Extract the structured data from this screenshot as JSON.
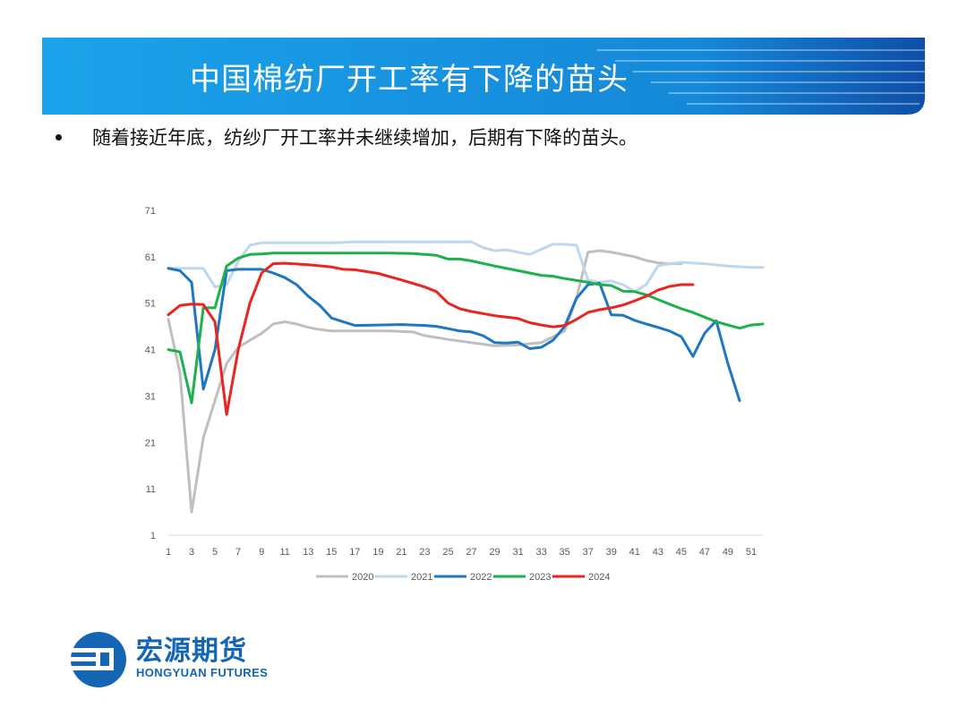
{
  "header": {
    "title": "中国棉纺厂开工率有下降的苗头",
    "banner_color": "#1296e3"
  },
  "bullet": {
    "text": "随着接近年底，纺纱厂开工率并未继续增加，后期有下降的苗头。"
  },
  "logo": {
    "name_cn": "宏源期货",
    "name_en": "HONGYUAN FUTURES",
    "color": "#1466b5"
  },
  "chart_data": {
    "type": "line",
    "title": "",
    "xlabel": "",
    "ylabel": "",
    "ylim": [
      1,
      71
    ],
    "yticks": [
      1,
      11,
      21,
      31,
      41,
      51,
      61,
      71
    ],
    "xlim": [
      1,
      52
    ],
    "xticks": [
      1,
      3,
      5,
      7,
      9,
      11,
      13,
      15,
      17,
      19,
      21,
      23,
      25,
      27,
      29,
      31,
      33,
      35,
      37,
      39,
      41,
      43,
      45,
      47,
      49,
      51
    ],
    "grid": false,
    "legend_position": "bottom",
    "series": [
      {
        "name": "2020",
        "color": "#bfbfbf",
        "points": [
          [
            1,
            47.5
          ],
          [
            2,
            36
          ],
          [
            3,
            6
          ],
          [
            4,
            22
          ],
          [
            5,
            30
          ],
          [
            6,
            38
          ],
          [
            7,
            41.5
          ],
          [
            8,
            43
          ],
          [
            9,
            44.5
          ],
          [
            10,
            46.5
          ],
          [
            11,
            47
          ],
          [
            12,
            46.5
          ],
          [
            13,
            45.8
          ],
          [
            14,
            45.3
          ],
          [
            15,
            45
          ],
          [
            17,
            45
          ],
          [
            20,
            45
          ],
          [
            22,
            44.8
          ],
          [
            23,
            44
          ],
          [
            25,
            43.2
          ],
          [
            27,
            42.5
          ],
          [
            29,
            41.8
          ],
          [
            31,
            42
          ],
          [
            33,
            42.5
          ],
          [
            35,
            45
          ],
          [
            36,
            52
          ],
          [
            37,
            62
          ],
          [
            38,
            62.3
          ],
          [
            39,
            62
          ],
          [
            40,
            61.5
          ],
          [
            41,
            61
          ],
          [
            42,
            60.2
          ],
          [
            43,
            59.7
          ],
          [
            44,
            59.5
          ],
          [
            45,
            59.5
          ]
        ]
      },
      {
        "name": "2021",
        "color": "#bdd7ee",
        "points": [
          [
            1,
            58.5
          ],
          [
            4,
            58.5
          ],
          [
            5,
            54.5
          ],
          [
            6,
            55
          ],
          [
            7,
            60
          ],
          [
            8,
            63.5
          ],
          [
            9,
            64
          ],
          [
            15,
            64
          ],
          [
            17,
            64.2
          ],
          [
            27,
            64.2
          ],
          [
            28,
            63
          ],
          [
            29,
            62.3
          ],
          [
            30,
            62.5
          ],
          [
            32,
            61.5
          ],
          [
            34,
            63.7
          ],
          [
            35,
            63.7
          ],
          [
            36,
            63.5
          ],
          [
            37,
            56
          ],
          [
            38,
            55.5
          ],
          [
            39,
            55.8
          ],
          [
            40,
            55
          ],
          [
            41,
            53.5
          ],
          [
            42,
            55
          ],
          [
            43,
            59
          ],
          [
            44,
            59.5
          ],
          [
            45,
            59.8
          ],
          [
            47,
            59.5
          ],
          [
            49,
            59
          ],
          [
            51,
            58.7
          ],
          [
            52,
            58.7
          ]
        ]
      },
      {
        "name": "2022",
        "color": "#1f77c2",
        "points": [
          [
            1,
            58.5
          ],
          [
            2,
            58
          ],
          [
            3,
            55.5
          ],
          [
            4,
            32.5
          ],
          [
            5,
            41
          ],
          [
            6,
            58
          ],
          [
            7,
            58.3
          ],
          [
            9,
            58.3
          ],
          [
            10,
            57.5
          ],
          [
            11,
            56.5
          ],
          [
            12,
            55
          ],
          [
            13,
            52.5
          ],
          [
            14,
            50.5
          ],
          [
            15,
            47.8
          ],
          [
            16,
            47
          ],
          [
            17,
            46.2
          ],
          [
            19,
            46.3
          ],
          [
            21,
            46.4
          ],
          [
            23,
            46.2
          ],
          [
            24,
            46
          ],
          [
            25,
            45.5
          ],
          [
            26,
            45
          ],
          [
            27,
            44.8
          ],
          [
            28,
            44
          ],
          [
            29,
            42.5
          ],
          [
            30,
            42.4
          ],
          [
            31,
            42.6
          ],
          [
            32,
            41.2
          ],
          [
            33,
            41.5
          ],
          [
            34,
            43
          ],
          [
            35,
            46
          ],
          [
            36,
            52
          ],
          [
            37,
            55
          ],
          [
            38,
            55.3
          ],
          [
            39,
            48.5
          ],
          [
            40,
            48.4
          ],
          [
            41,
            47.3
          ],
          [
            42,
            46.5
          ],
          [
            43,
            45.8
          ],
          [
            44,
            45
          ],
          [
            45,
            43.8
          ],
          [
            46,
            39.5
          ],
          [
            47,
            44.5
          ],
          [
            48,
            47.2
          ],
          [
            49,
            38
          ],
          [
            50,
            30
          ]
        ]
      },
      {
        "name": "2023",
        "color": "#1db04b",
        "points": [
          [
            1,
            41
          ],
          [
            2,
            40.5
          ],
          [
            3,
            29.5
          ],
          [
            4,
            50
          ],
          [
            5,
            50
          ],
          [
            6,
            59
          ],
          [
            7,
            60.7
          ],
          [
            8,
            61.5
          ],
          [
            9,
            61.6
          ],
          [
            10,
            61.8
          ],
          [
            20,
            61.8
          ],
          [
            22,
            61.7
          ],
          [
            24,
            61.3
          ],
          [
            25,
            60.5
          ],
          [
            26,
            60.5
          ],
          [
            27,
            60.1
          ],
          [
            29,
            59
          ],
          [
            31,
            58
          ],
          [
            33,
            57
          ],
          [
            34,
            56.8
          ],
          [
            35,
            56.3
          ],
          [
            37,
            55.5
          ],
          [
            38,
            55
          ],
          [
            39,
            54.8
          ],
          [
            40,
            53.6
          ],
          [
            41,
            53.5
          ],
          [
            42,
            52.8
          ],
          [
            43,
            51.8
          ],
          [
            44,
            50.8
          ],
          [
            45,
            49.8
          ],
          [
            46,
            49
          ],
          [
            47,
            48
          ],
          [
            48,
            47
          ],
          [
            49,
            46.3
          ],
          [
            50,
            45.6
          ],
          [
            51,
            46.3
          ],
          [
            52,
            46.5
          ]
        ]
      },
      {
        "name": "2024",
        "color": "#e8251f",
        "points": [
          [
            1,
            48.5
          ],
          [
            2,
            50.5
          ],
          [
            3,
            50.8
          ],
          [
            4,
            50.7
          ],
          [
            5,
            47
          ],
          [
            6,
            27
          ],
          [
            7,
            41
          ],
          [
            8,
            51
          ],
          [
            9,
            57.5
          ],
          [
            10,
            59.5
          ],
          [
            11,
            59.6
          ],
          [
            13,
            59.3
          ],
          [
            15,
            58.8
          ],
          [
            16,
            58.3
          ],
          [
            17,
            58.2
          ],
          [
            19,
            57.4
          ],
          [
            21,
            56
          ],
          [
            23,
            54.5
          ],
          [
            24,
            53.5
          ],
          [
            25,
            51
          ],
          [
            26,
            49.8
          ],
          [
            27,
            49.2
          ],
          [
            29,
            48.3
          ],
          [
            31,
            47.7
          ],
          [
            32,
            46.8
          ],
          [
            33,
            46.3
          ],
          [
            34,
            45.9
          ],
          [
            35,
            46.2
          ],
          [
            36,
            47.5
          ],
          [
            37,
            49
          ],
          [
            38,
            49.6
          ],
          [
            39,
            50
          ],
          [
            40,
            50.6
          ],
          [
            41,
            51.5
          ],
          [
            42,
            52.5
          ],
          [
            43,
            53.8
          ],
          [
            44,
            54.6
          ],
          [
            45,
            55
          ],
          [
            46,
            55
          ]
        ]
      }
    ]
  }
}
